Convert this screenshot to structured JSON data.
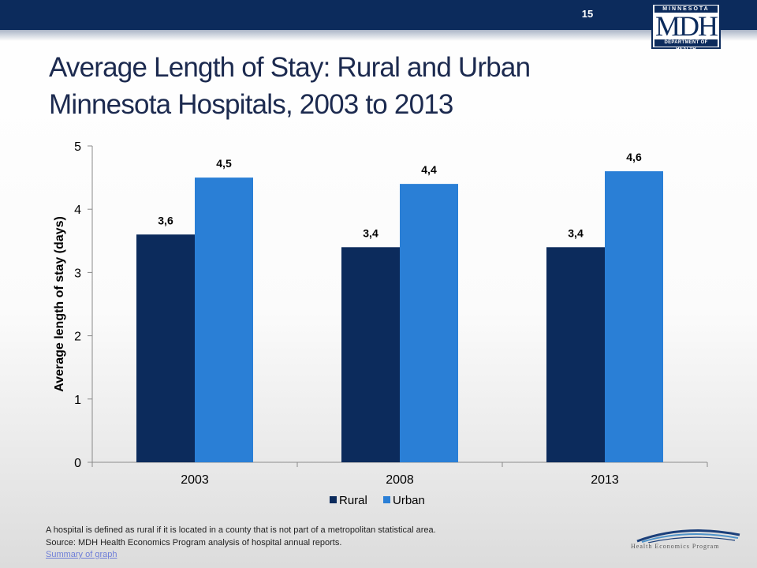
{
  "page": {
    "number": "15"
  },
  "logo": {
    "top_text": "MINNESOTA",
    "main_text": "MDH",
    "bottom_text": "DEPARTMENT OF HEALTH"
  },
  "title": "Average Length of Stay: Rural and Urban Minnesota Hospitals, 2003 to 2013",
  "chart_data": {
    "type": "bar",
    "categories": [
      "2003",
      "2008",
      "2013"
    ],
    "series": [
      {
        "name": "Rural",
        "values": [
          3.6,
          3.4,
          3.4
        ],
        "labels": [
          "3,6",
          "3,4",
          "3,4"
        ],
        "color": "#0c2b5c"
      },
      {
        "name": "Urban",
        "values": [
          4.5,
          4.4,
          4.6
        ],
        "labels": [
          "4,5",
          "4,4",
          "4,6"
        ],
        "color": "#2a7fd6"
      }
    ],
    "ylabel": "Average length of stay (days)",
    "ylim": [
      0,
      5
    ],
    "yticks": [
      "0",
      "1",
      "2",
      "3",
      "4",
      "5"
    ],
    "grid": false,
    "legend": "bottom"
  },
  "footnote": {
    "line1": "A hospital is defined as rural if it is located in a county that is not part of a metropolitan statistical area.",
    "line2": "Source: MDH Health Economics Program analysis of hospital annual reports.",
    "link": "Summary of graph"
  },
  "footer_logo": {
    "text": "Health Economics Program",
    "colors": {
      "primary": "#1b3f7a",
      "secondary": "#4f93c9"
    }
  }
}
